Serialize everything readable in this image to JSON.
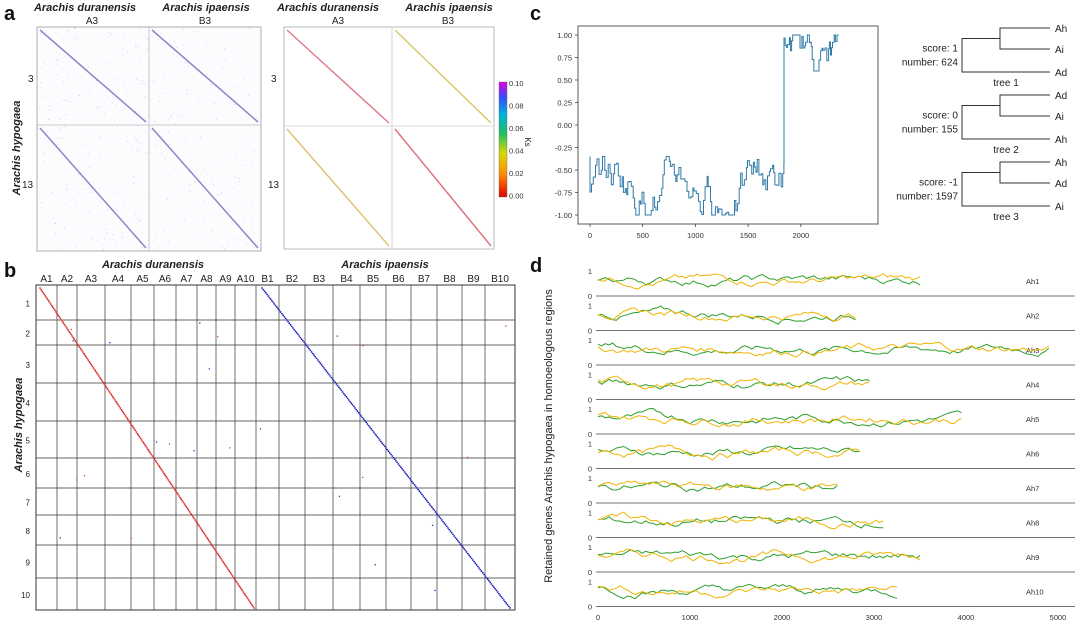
{
  "panel_labels": {
    "a": "a",
    "b": "b",
    "c": "c",
    "d": "d"
  },
  "species": {
    "duranensis": "Arachis duranensis",
    "ipaensis": "Arachis ipaensis",
    "hypogaea": "Arachis hypogaea"
  },
  "chart_data": [
    {
      "panel": "a-left",
      "type": "scatter",
      "title": "",
      "column_labels": [
        "A3",
        "B3"
      ],
      "row_labels": [
        "3",
        "13"
      ],
      "row_axis_label": "Arachis hypogaea"
    },
    {
      "panel": "a-right",
      "type": "scatter",
      "column_labels": [
        "A3",
        "B3"
      ],
      "row_labels": [
        "3",
        "13"
      ],
      "row_axis_label": "",
      "colorbar": {
        "label": "Ks",
        "ticks": [
          "0.10",
          "0.08",
          "0.06",
          "0.04",
          "0.02",
          "0.00"
        ],
        "range": [
          0.0,
          0.1
        ]
      }
    },
    {
      "panel": "b",
      "type": "scatter",
      "x_groups": [
        "Arachis duranensis",
        "Arachis ipaensis"
      ],
      "x_labels": [
        "A1",
        "A2",
        "A3",
        "A4",
        "A5",
        "A6",
        "A7",
        "A8",
        "A9",
        "A10",
        "B1",
        "B2",
        "B3",
        "B4",
        "B5",
        "B6",
        "B7",
        "B8",
        "B9",
        "B10"
      ],
      "y_labels": [
        "1",
        "2",
        "3",
        "4",
        "5",
        "6",
        "7",
        "8",
        "9",
        "10"
      ],
      "ylabel": "Arachis hypogaea",
      "series_colors": [
        "#d62728",
        "#1f1fbf"
      ]
    },
    {
      "panel": "c-line",
      "type": "line",
      "xlim": [
        0,
        2400
      ],
      "ylim": [
        -1.0,
        1.0
      ],
      "xticks": [
        "0",
        "500",
        "1000",
        "1500",
        "2000"
      ],
      "yticks": [
        "1.00",
        "0.75",
        "0.50",
        "0.25",
        "0.00",
        "-0.25",
        "-0.50",
        "-0.75",
        "-1.00"
      ],
      "switch_x": 1840,
      "segment_before": {
        "x_range": [
          0,
          1840
        ],
        "y_range": [
          -1.0,
          -0.35
        ]
      },
      "segment_after": {
        "x_range": [
          1840,
          2360
        ],
        "y_range": [
          0.6,
          1.0
        ]
      }
    },
    {
      "panel": "c-trees",
      "type": "table",
      "trees": [
        {
          "name": "tree 1",
          "score": "score: 1",
          "number": "number: 624",
          "leaves": [
            "Ah",
            "Ai",
            "Ad"
          ]
        },
        {
          "name": "tree 2",
          "score": "score: 0",
          "number": "number: 155",
          "leaves": [
            "Ad",
            "Ai",
            "Ah"
          ]
        },
        {
          "name": "tree 3",
          "score": "score: -1",
          "number": "number: 1597",
          "leaves": [
            "Ah",
            "Ad",
            "Ai"
          ]
        }
      ]
    },
    {
      "panel": "d",
      "type": "line",
      "ylabel": "Retained genes Arachis hypogaea in homoeologous regions",
      "xlim": [
        0,
        5000
      ],
      "xticks": [
        "0",
        "1000",
        "2000",
        "3000",
        "4000",
        "5000"
      ],
      "row_yticks": [
        "1",
        "0"
      ],
      "series_colors": [
        "#2ca02c",
        "#f0b400"
      ],
      "rows": [
        {
          "name": "Ah1",
          "length": 3500
        },
        {
          "name": "Ah2",
          "length": 2800
        },
        {
          "name": "Ah3",
          "length": 4900
        },
        {
          "name": "Ah4",
          "length": 2950
        },
        {
          "name": "Ah5",
          "length": 3950
        },
        {
          "name": "Ah6",
          "length": 2850
        },
        {
          "name": "Ah7",
          "length": 2600
        },
        {
          "name": "Ah8",
          "length": 3100
        },
        {
          "name": "Ah9",
          "length": 3500
        },
        {
          "name": "Ah10",
          "length": 3250
        }
      ]
    }
  ]
}
